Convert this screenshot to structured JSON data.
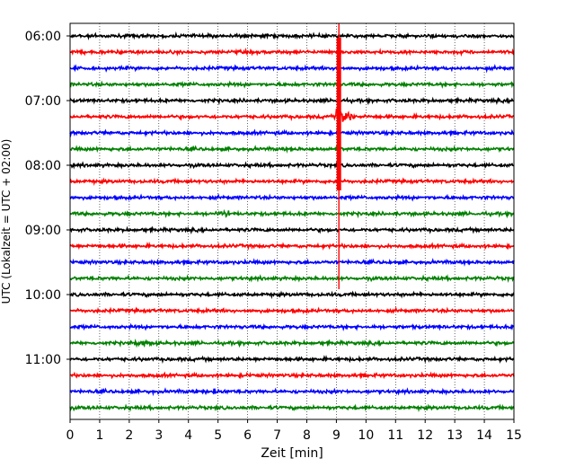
{
  "chart_data": {
    "type": "line",
    "title": "",
    "xlabel": "Zeit  [min]",
    "ylabel": "UTC (Lokalzeit = UTC + 02:00)",
    "xlim": [
      0,
      15
    ],
    "x_ticks": [
      "0",
      "1",
      "2",
      "3",
      "4",
      "5",
      "6",
      "7",
      "8",
      "9",
      "10",
      "11",
      "12",
      "13",
      "14",
      "15"
    ],
    "y_ticks": [
      "06:00",
      "07:00",
      "08:00",
      "09:00",
      "10:00",
      "11:00"
    ],
    "grid": "vertical dotted",
    "trace_interval_min": 15,
    "trace_colors": [
      "#000000",
      "#ff0000",
      "#0000ff",
      "#008000"
    ],
    "traces": [
      {
        "start": "06:00",
        "color": "#000000"
      },
      {
        "start": "06:15",
        "color": "#ff0000"
      },
      {
        "start": "06:30",
        "color": "#0000ff"
      },
      {
        "start": "06:45",
        "color": "#008000"
      },
      {
        "start": "07:00",
        "color": "#000000"
      },
      {
        "start": "07:15",
        "color": "#ff0000"
      },
      {
        "start": "07:30",
        "color": "#0000ff"
      },
      {
        "start": "07:45",
        "color": "#008000"
      },
      {
        "start": "08:00",
        "color": "#000000"
      },
      {
        "start": "08:15",
        "color": "#ff0000"
      },
      {
        "start": "08:30",
        "color": "#0000ff"
      },
      {
        "start": "08:45",
        "color": "#008000"
      },
      {
        "start": "09:00",
        "color": "#000000"
      },
      {
        "start": "09:15",
        "color": "#ff0000"
      },
      {
        "start": "09:30",
        "color": "#0000ff"
      },
      {
        "start": "09:45",
        "color": "#008000"
      },
      {
        "start": "10:00",
        "color": "#000000"
      },
      {
        "start": "10:15",
        "color": "#ff0000"
      },
      {
        "start": "10:30",
        "color": "#0000ff"
      },
      {
        "start": "10:45",
        "color": "#008000"
      },
      {
        "start": "11:00",
        "color": "#000000"
      },
      {
        "start": "11:15",
        "color": "#ff0000"
      },
      {
        "start": "11:30",
        "color": "#0000ff"
      },
      {
        "start": "11:45",
        "color": "#008000"
      }
    ],
    "events": [
      {
        "trace_start": "07:15",
        "time_min": 9.1,
        "type": "earthquake"
      },
      {
        "trace_start": "08:45",
        "time_min": 5.2,
        "type": "local"
      },
      {
        "trace_start": "10:45",
        "time_min": 2.4,
        "type": "local"
      },
      {
        "trace_start": "11:30",
        "time_min": 4.8,
        "type": "local"
      }
    ]
  }
}
